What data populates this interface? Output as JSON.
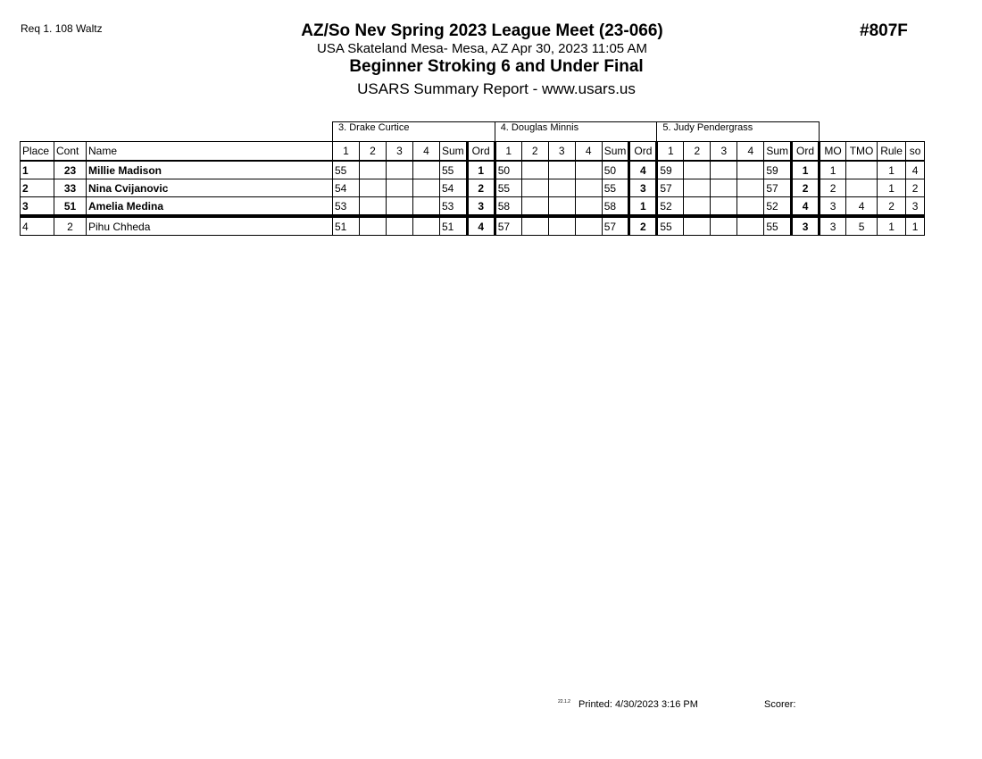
{
  "header": {
    "req": "Req  1.  108 Waltz",
    "code": "#807F",
    "title": "AZ/So Nev Spring 2023 League Meet (23-066)",
    "subtitle": "USA Skateland Mesa- Mesa, AZ  Apr 30, 2023  11:05 AM",
    "event": "Beginner Stroking 6 and Under Final",
    "report": "USARS Summary Report - www.usars.us"
  },
  "judges": [
    "3.  Drake Curtice",
    "4.  Douglas Minnis",
    "5.  Judy Pendergrass"
  ],
  "columns": {
    "place": "Place",
    "cont": "Cont",
    "name": "Name",
    "j1": "1",
    "j2": "2",
    "j3": "3",
    "j4": "4",
    "sum": "Sum",
    "ord": "Ord",
    "mo": "MO",
    "tmo": "TMO",
    "rule": "Rule",
    "so": "so"
  },
  "rows": [
    {
      "place": "1",
      "cont": "23",
      "name": "Millie Madison",
      "bold": true,
      "scores": [
        {
          "s1": "55",
          "sum": "55",
          "ord": "1"
        },
        {
          "s1": "50",
          "sum": "50",
          "ord": "4"
        },
        {
          "s1": "59",
          "sum": "59",
          "ord": "1"
        }
      ],
      "mo": "1",
      "tmo": "",
      "rule": "1",
      "so": "4"
    },
    {
      "place": "2",
      "cont": "33",
      "name": "Nina Cvijanovic",
      "bold": true,
      "scores": [
        {
          "s1": "54",
          "sum": "54",
          "ord": "2"
        },
        {
          "s1": "55",
          "sum": "55",
          "ord": "3"
        },
        {
          "s1": "57",
          "sum": "57",
          "ord": "2"
        }
      ],
      "mo": "2",
      "tmo": "",
      "rule": "1",
      "so": "2"
    },
    {
      "place": "3",
      "cont": "51",
      "name": "Amelia Medina",
      "bold": true,
      "scores": [
        {
          "s1": "53",
          "sum": "53",
          "ord": "3"
        },
        {
          "s1": "58",
          "sum": "58",
          "ord": "1"
        },
        {
          "s1": "52",
          "sum": "52",
          "ord": "4"
        }
      ],
      "mo": "3",
      "tmo": "4",
      "rule": "2",
      "so": "3"
    },
    {
      "place": "4",
      "cont": "2",
      "name": "Pihu Chheda",
      "bold": false,
      "scores": [
        {
          "s1": "51",
          "sum": "51",
          "ord": "4"
        },
        {
          "s1": "57",
          "sum": "57",
          "ord": "2"
        },
        {
          "s1": "55",
          "sum": "55",
          "ord": "3"
        }
      ],
      "mo": "3",
      "tmo": "5",
      "rule": "1",
      "so": "1"
    }
  ],
  "footer": {
    "version": "22.1.2",
    "printed": "Printed:  4/30/2023  3:16 PM",
    "scorer": "Scorer:"
  }
}
